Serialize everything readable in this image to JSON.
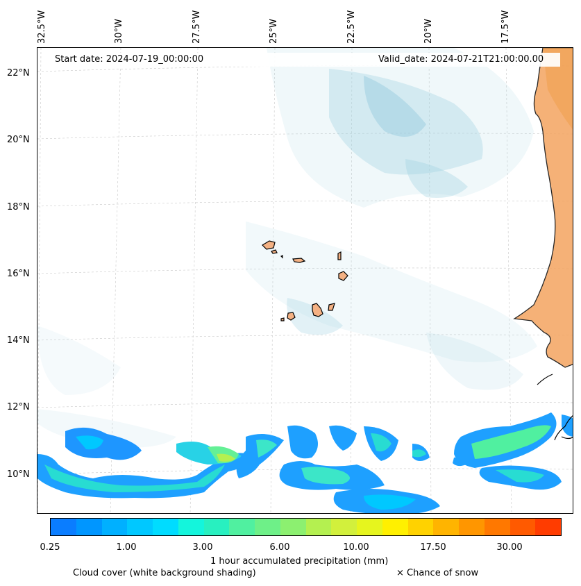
{
  "map": {
    "lon_labels": [
      "32.5°W",
      "30°W",
      "27.5°W",
      "25°W",
      "22.5°W",
      "20°W",
      "17.5°W"
    ],
    "lat_labels": [
      "22°N",
      "20°N",
      "18°N",
      "16°N",
      "14°N",
      "12°N",
      "10°N"
    ],
    "start_date": "Start date: 2024-07-19_00:00:00",
    "valid_date": "Valid_date: 2024-07-21T21:00:00.00",
    "extent": {
      "lon_min": -32.7,
      "lon_max": -15.8,
      "lat_min": 8.9,
      "lat_max": 22.8
    },
    "colors": {
      "land": "#f4a460",
      "cloud": "#add8e6",
      "coast": "#000000",
      "grid": "#bbbbbb"
    }
  },
  "colorbar": {
    "ticks": [
      "0.25",
      "1.00",
      "3.00",
      "6.00",
      "10.00",
      "17.50",
      "30.00"
    ],
    "label": "1 hour accumulated precipitation (mm)",
    "colors": [
      "#0a7dff",
      "#0096ff",
      "#00b0ff",
      "#00c8ff",
      "#00dcff",
      "#14f5dc",
      "#28f0c0",
      "#50f0a0",
      "#6ef088",
      "#8cf070",
      "#b4f050",
      "#d2f03c",
      "#e6f51e",
      "#fff000",
      "#ffd200",
      "#ffb400",
      "#ff9600",
      "#ff7800",
      "#ff5a00",
      "#ff3c00"
    ]
  },
  "legend": {
    "cloud_cover": "Cloud cover (white background shading)",
    "snow": "× Chance of snow"
  }
}
